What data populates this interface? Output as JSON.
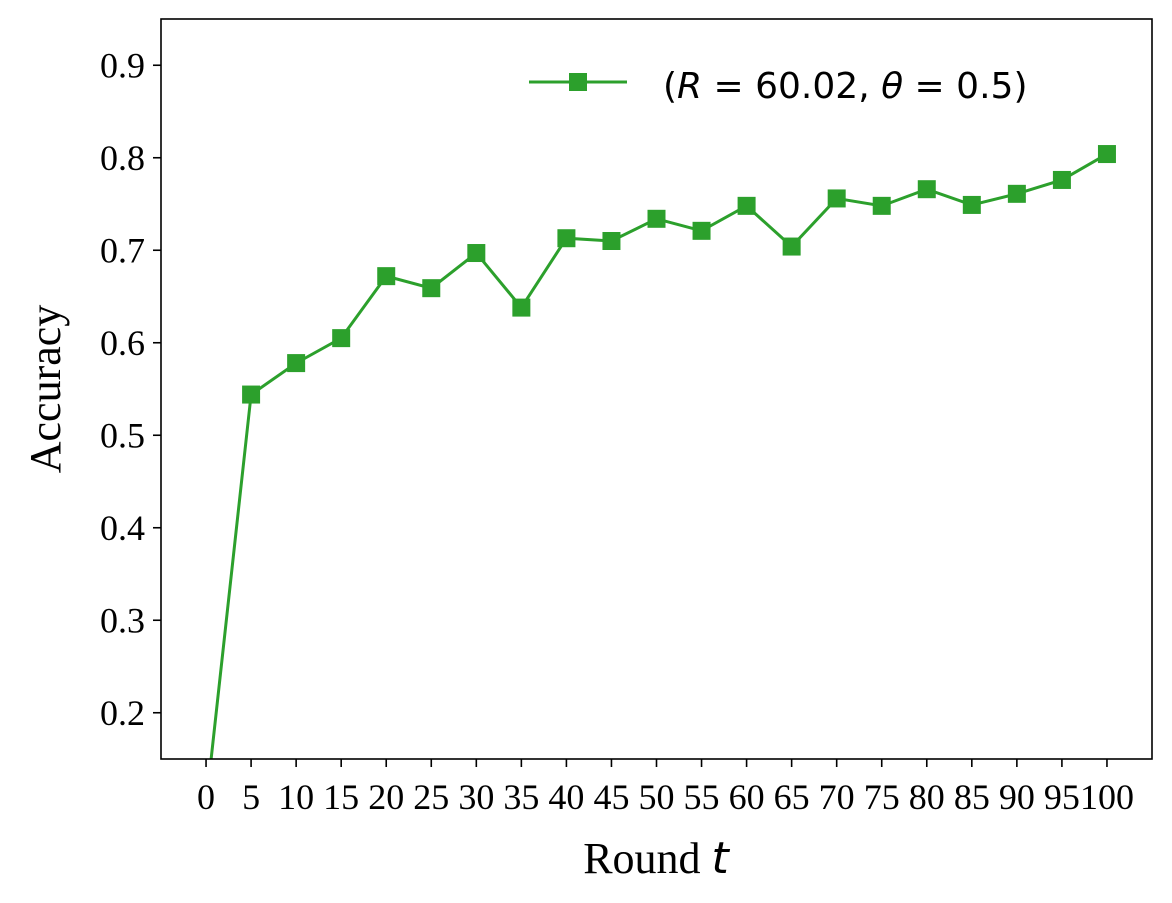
{
  "chart_data": {
    "type": "line",
    "xlabel": "Round",
    "xlabel_var": "t",
    "ylabel": "Accuracy",
    "xlim": [
      -5,
      105
    ],
    "ylim": [
      0.15,
      0.95
    ],
    "xticks": [
      0,
      5,
      10,
      15,
      20,
      25,
      30,
      35,
      40,
      45,
      50,
      55,
      60,
      65,
      70,
      75,
      80,
      85,
      90,
      95,
      100
    ],
    "yticks": [
      0.2,
      0.3,
      0.4,
      0.5,
      0.6,
      0.7,
      0.8,
      0.9
    ],
    "grid": false,
    "legend_position": "top-right",
    "series": [
      {
        "name": "(R = 60.02, θ = 0.5)",
        "color": "#2ca02c",
        "marker": "square",
        "x": [
          0,
          5,
          10,
          15,
          20,
          25,
          30,
          35,
          40,
          45,
          50,
          55,
          60,
          65,
          70,
          75,
          80,
          85,
          90,
          95,
          100
        ],
        "values": [
          0.1,
          0.544,
          0.578,
          0.605,
          0.672,
          0.659,
          0.697,
          0.638,
          0.713,
          0.71,
          0.734,
          0.721,
          0.748,
          0.704,
          0.756,
          0.748,
          0.766,
          0.749,
          0.761,
          0.776,
          0.804
        ]
      }
    ],
    "legend": {
      "R_label": "R",
      "R_value": "60.02",
      "theta_label": "θ",
      "theta_value": "0.5"
    }
  }
}
